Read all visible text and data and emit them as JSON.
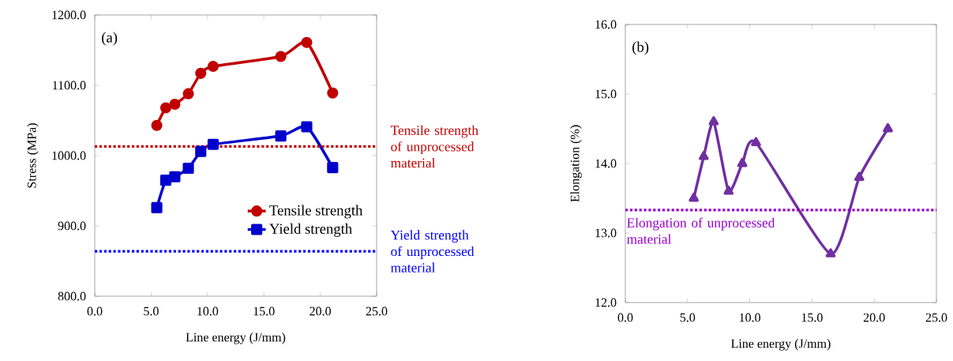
{
  "chart_data": [
    {
      "type": "line",
      "xlabel": "Line energy (J/mm)",
      "ylabel": "Stress (MPa)",
      "x": [
        5.5,
        6.3,
        7.1,
        8.3,
        9.4,
        10.5,
        16.5,
        18.8,
        21.1
      ],
      "series": [
        {
          "name": "Tensile strength",
          "color": "#c00000",
          "marker": "circle",
          "values": [
            1043,
            1068,
            1073,
            1088,
            1117,
            1127,
            1141,
            1161,
            1089
          ]
        },
        {
          "name": "Yield strength",
          "color": "#0000cc",
          "marker": "square",
          "values": [
            926,
            965,
            970,
            982,
            1006,
            1016,
            1028,
            1041,
            983
          ]
        }
      ],
      "xlim": [
        0,
        25
      ],
      "xticks": [
        {
          "value": 0,
          "label": "0.0"
        },
        {
          "value": 5,
          "label": "5.0"
        },
        {
          "value": 10,
          "label": "10.0"
        },
        {
          "value": 15,
          "label": "15.0"
        },
        {
          "value": 20,
          "label": "20.0"
        },
        {
          "value": 25,
          "label": "25.0"
        }
      ],
      "ylim": [
        800,
        1200
      ],
      "yticks": [
        {
          "value": 800,
          "label": "800.0"
        },
        {
          "value": 900,
          "label": "900.0"
        },
        {
          "value": 1000,
          "label": "1000.0"
        },
        {
          "value": 1100,
          "label": "1100.0"
        },
        {
          "value": 1200,
          "label": "1200.0"
        }
      ],
      "ref_lines": [
        {
          "axis": "y",
          "value": 1013,
          "label": "Tensile strength of unprocessed material",
          "color": "#c00000",
          "line_style": "dotted"
        },
        {
          "axis": "y",
          "value": 864,
          "label": "Yield strength of unprocessed material",
          "color": "#0000ff",
          "line_style": "dotted"
        }
      ],
      "legend": "bottom right",
      "annotations": [
        "(a)"
      ]
    },
    {
      "type": "line",
      "xlabel": "Line energy (J/mm)",
      "ylabel": "Elongation (%)",
      "x": [
        5.5,
        6.3,
        7.1,
        8.3,
        9.4,
        10.5,
        16.5,
        18.8,
        21.1
      ],
      "series": [
        {
          "color": "#7030a0",
          "marker": "triangle",
          "values": [
            13.5,
            14.1,
            14.6,
            13.6,
            14.0,
            14.3,
            12.7,
            13.8,
            14.5
          ]
        }
      ],
      "xlim": [
        0,
        25
      ],
      "xticks": [
        {
          "value": 0,
          "label": "0.0"
        },
        {
          "value": 5,
          "label": "5.0"
        },
        {
          "value": 10,
          "label": "10.0"
        },
        {
          "value": 15,
          "label": "15.0"
        },
        {
          "value": 20,
          "label": "20.0"
        },
        {
          "value": 25,
          "label": "25.0"
        }
      ],
      "ylim": [
        12,
        16
      ],
      "yticks": [
        {
          "value": 12,
          "label": "12.0"
        },
        {
          "value": 13,
          "label": "13.0"
        },
        {
          "value": 14,
          "label": "14.0"
        },
        {
          "value": 15,
          "label": "15.0"
        },
        {
          "value": 16,
          "label": "16.0"
        }
      ],
      "ref_lines": [
        {
          "axis": "y",
          "value": 13.33,
          "label": "Elongation of unprocessed material",
          "color": "#9900cc",
          "line_style": "dotted"
        }
      ],
      "annotations": [
        "(b)"
      ]
    }
  ]
}
